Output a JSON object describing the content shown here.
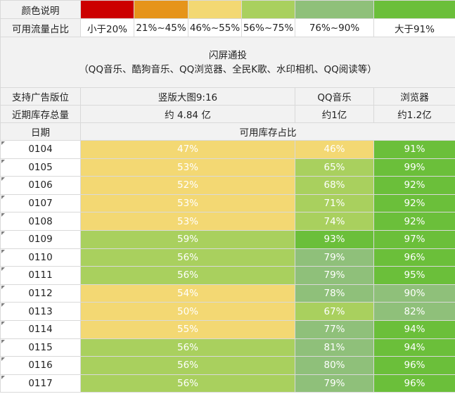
{
  "legend": {
    "color_label": "颜色说明",
    "ratio_label": "可用流量占比",
    "bands": [
      {
        "range": "小于20%",
        "color": "#cc0000"
      },
      {
        "range": "21%~45%",
        "color": "#e6941a"
      },
      {
        "range": "46%~55%",
        "color": "#f3d873"
      },
      {
        "range": "56%~75%",
        "color": "#a9d05e"
      },
      {
        "range": "76%~90%",
        "color": "#8fc07a"
      },
      {
        "range": "大于91%",
        "color": "#6bbf3a"
      }
    ]
  },
  "placement": {
    "title": "闪屏通投",
    "subtitle": "（QQ音乐、酷狗音乐、QQ浏览器、全民K歌、水印相机、QQ阅读等）"
  },
  "header": {
    "slot_label": "支持广告版位",
    "slots": [
      "竖版大图9:16",
      "QQ音乐",
      "浏览器"
    ],
    "inventory_label": "近期库存总量",
    "inventory": [
      "约 4.84 亿",
      "约1亿",
      "约1.2亿"
    ],
    "date_label": "日期",
    "ratio_header": "可用库存占比"
  },
  "rows": [
    {
      "date": "0104",
      "values": [
        "47%",
        "46%",
        "91%"
      ],
      "colors": [
        "#f3d873",
        "#f3d873",
        "#6bbf3a"
      ]
    },
    {
      "date": "0105",
      "values": [
        "53%",
        "65%",
        "99%"
      ],
      "colors": [
        "#f3d873",
        "#a9d05e",
        "#6bbf3a"
      ]
    },
    {
      "date": "0106",
      "values": [
        "52%",
        "68%",
        "92%"
      ],
      "colors": [
        "#f3d873",
        "#a9d05e",
        "#6bbf3a"
      ]
    },
    {
      "date": "0107",
      "values": [
        "53%",
        "71%",
        "92%"
      ],
      "colors": [
        "#f3d873",
        "#a9d05e",
        "#6bbf3a"
      ]
    },
    {
      "date": "0108",
      "values": [
        "53%",
        "74%",
        "92%"
      ],
      "colors": [
        "#f3d873",
        "#a9d05e",
        "#6bbf3a"
      ]
    },
    {
      "date": "0109",
      "values": [
        "59%",
        "93%",
        "97%"
      ],
      "colors": [
        "#a9d05e",
        "#6bbf3a",
        "#6bbf3a"
      ]
    },
    {
      "date": "0110",
      "values": [
        "56%",
        "79%",
        "96%"
      ],
      "colors": [
        "#a9d05e",
        "#8fc07a",
        "#6bbf3a"
      ]
    },
    {
      "date": "0111",
      "values": [
        "56%",
        "79%",
        "95%"
      ],
      "colors": [
        "#a9d05e",
        "#8fc07a",
        "#6bbf3a"
      ]
    },
    {
      "date": "0112",
      "values": [
        "54%",
        "78%",
        "90%"
      ],
      "colors": [
        "#f3d873",
        "#8fc07a",
        "#8fc07a"
      ]
    },
    {
      "date": "0113",
      "values": [
        "50%",
        "67%",
        "82%"
      ],
      "colors": [
        "#f3d873",
        "#a9d05e",
        "#8fc07a"
      ]
    },
    {
      "date": "0114",
      "values": [
        "55%",
        "77%",
        "94%"
      ],
      "colors": [
        "#f3d873",
        "#8fc07a",
        "#6bbf3a"
      ]
    },
    {
      "date": "0115",
      "values": [
        "56%",
        "81%",
        "94%"
      ],
      "colors": [
        "#a9d05e",
        "#8fc07a",
        "#6bbf3a"
      ]
    },
    {
      "date": "0116",
      "values": [
        "56%",
        "80%",
        "96%"
      ],
      "colors": [
        "#a9d05e",
        "#8fc07a",
        "#6bbf3a"
      ]
    },
    {
      "date": "0117",
      "values": [
        "56%",
        "79%",
        "96%"
      ],
      "colors": [
        "#a9d05e",
        "#8fc07a",
        "#6bbf3a"
      ]
    }
  ]
}
